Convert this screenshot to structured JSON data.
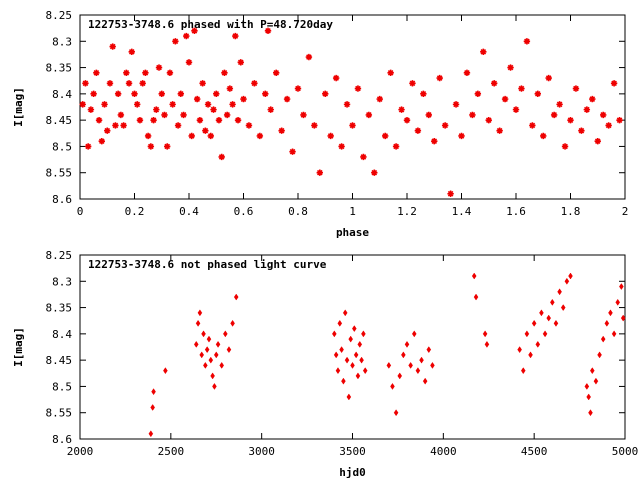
{
  "chart_data": [
    {
      "type": "scatter",
      "title": "122753-3748.6 phased with P=48.720day",
      "xlabel": "phase",
      "ylabel": "I[mag]",
      "xlim": [
        0,
        2
      ],
      "ylim": [
        8.6,
        8.25
      ],
      "y_inverted": true,
      "grid": false,
      "marker": "star",
      "color": "#ee0000",
      "xticks": [
        "0",
        "0.2",
        "0.4",
        "0.6",
        "0.8",
        "1",
        "1.2",
        "1.4",
        "1.6",
        "1.8",
        "2"
      ],
      "yticks": [
        "8.25",
        "8.3",
        "8.35",
        "8.4",
        "8.45",
        "8.5",
        "8.55",
        "8.6"
      ],
      "points": [
        [
          0.01,
          8.42
        ],
        [
          0.02,
          8.38
        ],
        [
          0.03,
          8.5
        ],
        [
          0.04,
          8.43
        ],
        [
          0.05,
          8.4
        ],
        [
          0.06,
          8.36
        ],
        [
          0.07,
          8.45
        ],
        [
          0.08,
          8.49
        ],
        [
          0.09,
          8.42
        ],
        [
          0.1,
          8.47
        ],
        [
          0.11,
          8.38
        ],
        [
          0.12,
          8.31
        ],
        [
          0.13,
          8.46
        ],
        [
          0.14,
          8.4
        ],
        [
          0.15,
          8.44
        ],
        [
          0.16,
          8.46
        ],
        [
          0.17,
          8.36
        ],
        [
          0.18,
          8.38
        ],
        [
          0.19,
          8.32
        ],
        [
          0.2,
          8.4
        ],
        [
          0.21,
          8.42
        ],
        [
          0.22,
          8.45
        ],
        [
          0.23,
          8.38
        ],
        [
          0.24,
          8.36
        ],
        [
          0.25,
          8.48
        ],
        [
          0.26,
          8.5
        ],
        [
          0.27,
          8.45
        ],
        [
          0.28,
          8.43
        ],
        [
          0.29,
          8.35
        ],
        [
          0.3,
          8.4
        ],
        [
          0.31,
          8.44
        ],
        [
          0.32,
          8.5
        ],
        [
          0.33,
          8.36
        ],
        [
          0.34,
          8.42
        ],
        [
          0.35,
          8.3
        ],
        [
          0.36,
          8.46
        ],
        [
          0.37,
          8.4
        ],
        [
          0.38,
          8.44
        ],
        [
          0.39,
          8.29
        ],
        [
          0.4,
          8.34
        ],
        [
          0.41,
          8.48
        ],
        [
          0.42,
          8.28
        ],
        [
          0.43,
          8.41
        ],
        [
          0.44,
          8.45
        ],
        [
          0.45,
          8.38
        ],
        [
          0.46,
          8.47
        ],
        [
          0.47,
          8.42
        ],
        [
          0.48,
          8.48
        ],
        [
          0.49,
          8.43
        ],
        [
          0.5,
          8.4
        ],
        [
          0.51,
          8.45
        ],
        [
          0.52,
          8.52
        ],
        [
          0.53,
          8.36
        ],
        [
          0.54,
          8.44
        ],
        [
          0.55,
          8.39
        ],
        [
          0.56,
          8.42
        ],
        [
          0.57,
          8.29
        ],
        [
          0.58,
          8.45
        ],
        [
          0.59,
          8.34
        ],
        [
          0.6,
          8.41
        ],
        [
          0.62,
          8.46
        ],
        [
          0.64,
          8.38
        ],
        [
          0.66,
          8.48
        ],
        [
          0.68,
          8.4
        ],
        [
          0.69,
          8.28
        ],
        [
          0.7,
          8.43
        ],
        [
          0.72,
          8.36
        ],
        [
          0.74,
          8.47
        ],
        [
          0.76,
          8.41
        ],
        [
          0.78,
          8.51
        ],
        [
          0.8,
          8.39
        ],
        [
          0.82,
          8.44
        ],
        [
          0.84,
          8.33
        ],
        [
          0.86,
          8.46
        ],
        [
          0.88,
          8.55
        ],
        [
          0.9,
          8.4
        ],
        [
          0.92,
          8.48
        ],
        [
          0.94,
          8.37
        ],
        [
          0.96,
          8.5
        ],
        [
          0.98,
          8.42
        ],
        [
          1.0,
          8.46
        ],
        [
          1.02,
          8.39
        ],
        [
          1.04,
          8.52
        ],
        [
          1.06,
          8.44
        ],
        [
          1.08,
          8.55
        ],
        [
          1.1,
          8.41
        ],
        [
          1.12,
          8.48
        ],
        [
          1.14,
          8.36
        ],
        [
          1.16,
          8.5
        ],
        [
          1.18,
          8.43
        ],
        [
          1.2,
          8.45
        ],
        [
          1.22,
          8.38
        ],
        [
          1.24,
          8.47
        ],
        [
          1.26,
          8.4
        ],
        [
          1.28,
          8.44
        ],
        [
          1.3,
          8.49
        ],
        [
          1.32,
          8.37
        ],
        [
          1.34,
          8.46
        ],
        [
          1.36,
          8.59
        ],
        [
          1.38,
          8.42
        ],
        [
          1.4,
          8.48
        ],
        [
          1.42,
          8.36
        ],
        [
          1.44,
          8.44
        ],
        [
          1.46,
          8.4
        ],
        [
          1.48,
          8.32
        ],
        [
          1.5,
          8.45
        ],
        [
          1.52,
          8.38
        ],
        [
          1.54,
          8.47
        ],
        [
          1.56,
          8.41
        ],
        [
          1.58,
          8.35
        ],
        [
          1.6,
          8.43
        ],
        [
          1.62,
          8.39
        ],
        [
          1.64,
          8.3
        ],
        [
          1.66,
          8.46
        ],
        [
          1.68,
          8.4
        ],
        [
          1.7,
          8.48
        ],
        [
          1.72,
          8.37
        ],
        [
          1.74,
          8.44
        ],
        [
          1.76,
          8.42
        ],
        [
          1.78,
          8.5
        ],
        [
          1.8,
          8.45
        ],
        [
          1.82,
          8.39
        ],
        [
          1.84,
          8.47
        ],
        [
          1.86,
          8.43
        ],
        [
          1.88,
          8.41
        ],
        [
          1.9,
          8.49
        ],
        [
          1.92,
          8.44
        ],
        [
          1.94,
          8.46
        ],
        [
          1.96,
          8.38
        ],
        [
          1.98,
          8.45
        ]
      ]
    },
    {
      "type": "scatter",
      "title": "122753-3748.6 not phased light curve",
      "xlabel": "hjd0",
      "ylabel": "I[mag]",
      "xlim": [
        2000,
        5000
      ],
      "ylim": [
        8.6,
        8.25
      ],
      "y_inverted": true,
      "grid": false,
      "marker": "diamond",
      "color": "#ee0000",
      "xticks": [
        "2000",
        "2500",
        "3000",
        "3500",
        "4000",
        "4500",
        "5000"
      ],
      "yticks": [
        "8.25",
        "8.3",
        "8.35",
        "8.4",
        "8.45",
        "8.5",
        "8.55",
        "8.6"
      ],
      "points": [
        [
          2390,
          8.59
        ],
        [
          2400,
          8.54
        ],
        [
          2405,
          8.51
        ],
        [
          2470,
          8.47
        ],
        [
          2640,
          8.42
        ],
        [
          2650,
          8.38
        ],
        [
          2660,
          8.36
        ],
        [
          2670,
          8.44
        ],
        [
          2680,
          8.4
        ],
        [
          2690,
          8.46
        ],
        [
          2700,
          8.43
        ],
        [
          2710,
          8.41
        ],
        [
          2720,
          8.45
        ],
        [
          2730,
          8.48
        ],
        [
          2740,
          8.5
        ],
        [
          2750,
          8.44
        ],
        [
          2760,
          8.42
        ],
        [
          2780,
          8.46
        ],
        [
          2800,
          8.4
        ],
        [
          2820,
          8.43
        ],
        [
          2840,
          8.38
        ],
        [
          2860,
          8.33
        ],
        [
          3400,
          8.4
        ],
        [
          3410,
          8.44
        ],
        [
          3420,
          8.47
        ],
        [
          3430,
          8.38
        ],
        [
          3440,
          8.43
        ],
        [
          3450,
          8.49
        ],
        [
          3460,
          8.36
        ],
        [
          3470,
          8.45
        ],
        [
          3480,
          8.52
        ],
        [
          3490,
          8.41
        ],
        [
          3500,
          8.46
        ],
        [
          3510,
          8.39
        ],
        [
          3520,
          8.44
        ],
        [
          3530,
          8.48
        ],
        [
          3540,
          8.42
        ],
        [
          3550,
          8.45
        ],
        [
          3560,
          8.4
        ],
        [
          3570,
          8.47
        ],
        [
          3700,
          8.46
        ],
        [
          3720,
          8.5
        ],
        [
          3740,
          8.55
        ],
        [
          3760,
          8.48
        ],
        [
          3780,
          8.44
        ],
        [
          3800,
          8.42
        ],
        [
          3820,
          8.46
        ],
        [
          3840,
          8.4
        ],
        [
          3860,
          8.47
        ],
        [
          3880,
          8.45
        ],
        [
          3900,
          8.49
        ],
        [
          3920,
          8.43
        ],
        [
          3940,
          8.46
        ],
        [
          4170,
          8.29
        ],
        [
          4180,
          8.33
        ],
        [
          4230,
          8.4
        ],
        [
          4240,
          8.42
        ],
        [
          4420,
          8.43
        ],
        [
          4440,
          8.47
        ],
        [
          4460,
          8.4
        ],
        [
          4480,
          8.44
        ],
        [
          4500,
          8.38
        ],
        [
          4520,
          8.42
        ],
        [
          4540,
          8.36
        ],
        [
          4560,
          8.4
        ],
        [
          4580,
          8.37
        ],
        [
          4600,
          8.34
        ],
        [
          4620,
          8.38
        ],
        [
          4640,
          8.32
        ],
        [
          4660,
          8.35
        ],
        [
          4680,
          8.3
        ],
        [
          4700,
          8.29
        ],
        [
          4790,
          8.5
        ],
        [
          4800,
          8.52
        ],
        [
          4810,
          8.55
        ],
        [
          4820,
          8.47
        ],
        [
          4840,
          8.49
        ],
        [
          4860,
          8.44
        ],
        [
          4880,
          8.41
        ],
        [
          4900,
          8.38
        ],
        [
          4920,
          8.36
        ],
        [
          4940,
          8.4
        ],
        [
          4960,
          8.34
        ],
        [
          4980,
          8.31
        ],
        [
          4990,
          8.37
        ]
      ]
    }
  ]
}
